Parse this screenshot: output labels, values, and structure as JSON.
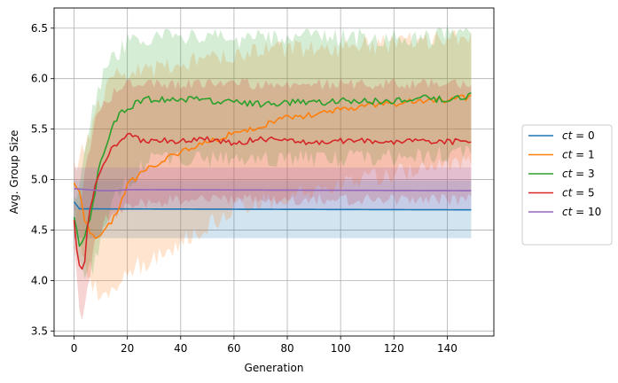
{
  "chart_data": {
    "type": "line",
    "title": "",
    "xlabel": "Generation",
    "ylabel": "Avg. Group Size",
    "xlim": [
      -7.5,
      157.5
    ],
    "ylim": [
      3.45,
      6.7
    ],
    "xticks": [
      0,
      20,
      40,
      60,
      80,
      100,
      120,
      140
    ],
    "yticks": [
      3.5,
      4.0,
      4.5,
      5.0,
      5.5,
      6.0,
      6.5
    ],
    "grid": true,
    "legend_position": "outside-right",
    "bands": "shaded region around each series showing spread",
    "series": [
      {
        "name_var": "ct",
        "name_eq": " = ",
        "name_val": "0",
        "color": "#1f77b4",
        "keypoints": [
          [
            0,
            4.78
          ],
          [
            2,
            4.71
          ],
          [
            150,
            4.7
          ]
        ],
        "band_lower": [
          [
            0,
            4.42
          ],
          [
            150,
            4.42
          ]
        ],
        "band_upper": [
          [
            0,
            4.99
          ],
          [
            150,
            4.99
          ]
        ]
      },
      {
        "name_var": "ct",
        "name_eq": " = ",
        "name_val": "1",
        "color": "#ff7f0e",
        "keypoints": [
          [
            0,
            4.97
          ],
          [
            2,
            4.88
          ],
          [
            4,
            4.6
          ],
          [
            6,
            4.47
          ],
          [
            8,
            4.4
          ],
          [
            10,
            4.46
          ],
          [
            12,
            4.5
          ],
          [
            15,
            4.62
          ],
          [
            18,
            4.8
          ],
          [
            20,
            4.95
          ],
          [
            25,
            5.05
          ],
          [
            30,
            5.15
          ],
          [
            40,
            5.27
          ],
          [
            50,
            5.37
          ],
          [
            60,
            5.46
          ],
          [
            70,
            5.53
          ],
          [
            80,
            5.62
          ],
          [
            90,
            5.64
          ],
          [
            100,
            5.7
          ],
          [
            110,
            5.73
          ],
          [
            120,
            5.75
          ],
          [
            130,
            5.78
          ],
          [
            140,
            5.79
          ],
          [
            150,
            5.82
          ]
        ],
        "band_lower": [
          [
            0,
            4.75
          ],
          [
            5,
            4.0
          ],
          [
            10,
            3.85
          ],
          [
            15,
            3.9
          ],
          [
            20,
            4.1
          ],
          [
            30,
            4.2
          ],
          [
            40,
            4.4
          ],
          [
            50,
            4.55
          ],
          [
            60,
            4.7
          ],
          [
            80,
            4.85
          ],
          [
            100,
            4.95
          ],
          [
            120,
            5.05
          ],
          [
            150,
            5.2
          ]
        ],
        "band_upper": [
          [
            0,
            5.1
          ],
          [
            5,
            5.4
          ],
          [
            10,
            5.8
          ],
          [
            15,
            6.0
          ],
          [
            20,
            6.05
          ],
          [
            30,
            6.1
          ],
          [
            40,
            6.15
          ],
          [
            50,
            6.2
          ],
          [
            60,
            6.25
          ],
          [
            80,
            6.3
          ],
          [
            100,
            6.3
          ],
          [
            120,
            6.35
          ],
          [
            150,
            6.45
          ]
        ]
      },
      {
        "name_var": "ct",
        "name_eq": " = ",
        "name_val": "3",
        "color": "#2ca02c",
        "keypoints": [
          [
            0,
            4.63
          ],
          [
            1,
            4.5
          ],
          [
            2,
            4.35
          ],
          [
            4,
            4.45
          ],
          [
            6,
            4.6
          ],
          [
            8,
            4.9
          ],
          [
            10,
            5.2
          ],
          [
            12,
            5.35
          ],
          [
            14,
            5.5
          ],
          [
            16,
            5.6
          ],
          [
            18,
            5.68
          ],
          [
            20,
            5.7
          ],
          [
            25,
            5.78
          ],
          [
            30,
            5.8
          ],
          [
            40,
            5.8
          ],
          [
            50,
            5.79
          ],
          [
            60,
            5.76
          ],
          [
            70,
            5.75
          ],
          [
            80,
            5.76
          ],
          [
            90,
            5.76
          ],
          [
            100,
            5.78
          ],
          [
            110,
            5.78
          ],
          [
            120,
            5.77
          ],
          [
            130,
            5.8
          ],
          [
            140,
            5.8
          ],
          [
            150,
            5.83
          ]
        ],
        "band_lower": [
          [
            0,
            4.4
          ],
          [
            4,
            4.0
          ],
          [
            8,
            4.2
          ],
          [
            12,
            4.6
          ],
          [
            16,
            4.9
          ],
          [
            20,
            5.0
          ],
          [
            30,
            5.2
          ],
          [
            60,
            5.2
          ],
          [
            100,
            5.2
          ],
          [
            150,
            5.25
          ]
        ],
        "band_upper": [
          [
            0,
            4.8
          ],
          [
            4,
            5.2
          ],
          [
            8,
            5.8
          ],
          [
            12,
            6.1
          ],
          [
            16,
            6.25
          ],
          [
            20,
            6.35
          ],
          [
            30,
            6.4
          ],
          [
            60,
            6.4
          ],
          [
            100,
            6.4
          ],
          [
            150,
            6.45
          ]
        ]
      },
      {
        "name_var": "ct",
        "name_eq": " = ",
        "name_val": "5",
        "color": "#d62728",
        "keypoints": [
          [
            0,
            4.6
          ],
          [
            1,
            4.3
          ],
          [
            2,
            4.15
          ],
          [
            3,
            4.1
          ],
          [
            4,
            4.2
          ],
          [
            5,
            4.5
          ],
          [
            6,
            4.7
          ],
          [
            8,
            4.95
          ],
          [
            10,
            5.1
          ],
          [
            12,
            5.2
          ],
          [
            14,
            5.3
          ],
          [
            16,
            5.35
          ],
          [
            18,
            5.4
          ],
          [
            20,
            5.47
          ],
          [
            25,
            5.38
          ],
          [
            30,
            5.4
          ],
          [
            40,
            5.38
          ],
          [
            50,
            5.4
          ],
          [
            60,
            5.36
          ],
          [
            70,
            5.4
          ],
          [
            80,
            5.38
          ],
          [
            90,
            5.37
          ],
          [
            100,
            5.38
          ],
          [
            110,
            5.38
          ],
          [
            120,
            5.37
          ],
          [
            130,
            5.38
          ],
          [
            140,
            5.37
          ],
          [
            150,
            5.4
          ]
        ],
        "band_lower": [
          [
            0,
            4.3
          ],
          [
            2,
            3.7
          ],
          [
            3,
            3.65
          ],
          [
            5,
            3.9
          ],
          [
            8,
            4.4
          ],
          [
            12,
            4.6
          ],
          [
            20,
            4.75
          ],
          [
            40,
            4.8
          ],
          [
            80,
            4.8
          ],
          [
            150,
            4.8
          ]
        ],
        "band_upper": [
          [
            0,
            4.8
          ],
          [
            2,
            4.7
          ],
          [
            5,
            5.2
          ],
          [
            8,
            5.6
          ],
          [
            12,
            5.8
          ],
          [
            20,
            5.95
          ],
          [
            40,
            5.95
          ],
          [
            80,
            5.95
          ],
          [
            150,
            5.95
          ]
        ]
      },
      {
        "name_var": "ct",
        "name_eq": " = ",
        "name_val": "10",
        "color": "#9467bd",
        "keypoints": [
          [
            0,
            4.91
          ],
          [
            5,
            4.9
          ],
          [
            10,
            4.89
          ],
          [
            15,
            4.89
          ],
          [
            20,
            4.9
          ],
          [
            150,
            4.89
          ]
        ],
        "band_lower": [
          [
            0,
            4.7
          ],
          [
            150,
            4.7
          ]
        ],
        "band_upper": [
          [
            0,
            5.12
          ],
          [
            150,
            5.12
          ]
        ]
      }
    ]
  }
}
